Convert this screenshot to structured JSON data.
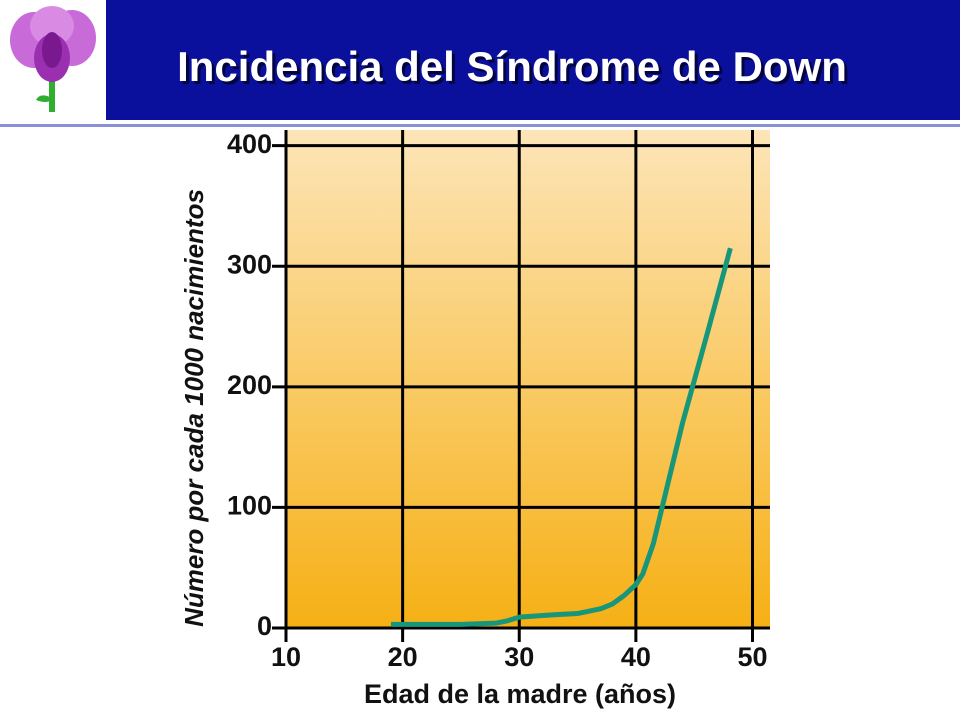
{
  "chart_data": {
    "type": "line",
    "title": "Incidencia del Síndrome de Down",
    "x_label": "Edad de la madre (años)",
    "y_label": "Número por cada 1000 nacimientos",
    "xlim": [
      10,
      51.5
    ],
    "ylim": [
      0,
      413
    ],
    "xticks": [
      10,
      20,
      30,
      40,
      50
    ],
    "yticks": [
      0,
      100,
      200,
      300,
      400
    ],
    "grid": true,
    "series": [
      {
        "color": "#17967a",
        "x": [
          19,
          22,
          25,
          28,
          29,
          30,
          33,
          35,
          37,
          38,
          39,
          40,
          40.6,
          41.5,
          42.5,
          44,
          46,
          48.1
        ],
        "values": [
          3,
          3,
          3,
          4,
          6,
          9,
          11,
          12,
          16,
          20,
          27,
          36,
          45,
          70,
          110,
          170,
          240,
          315
        ]
      }
    ]
  }
}
